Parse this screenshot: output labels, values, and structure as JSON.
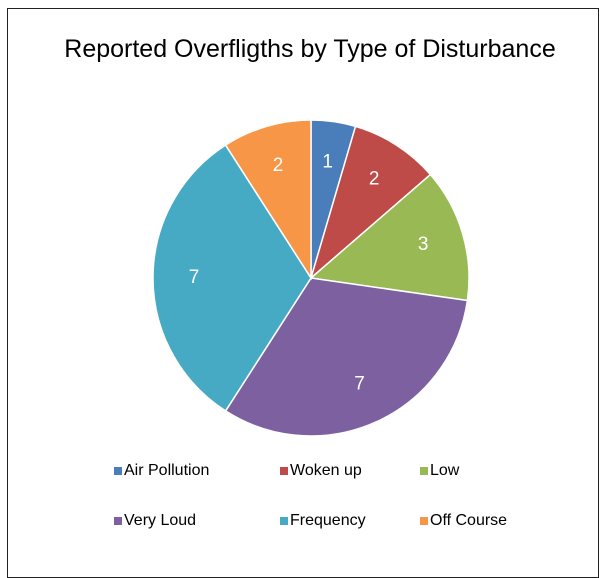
{
  "chart_data": {
    "type": "pie",
    "title": "Reported Overfligths by Type of Disturbance",
    "categories": [
      "Air Pollution",
      "Woken up",
      "Low",
      "Very Loud",
      "Frequency",
      "Off Course"
    ],
    "values": [
      1,
      2,
      3,
      7,
      7,
      2
    ],
    "colors": [
      "#4a7ebb",
      "#be4b48",
      "#98b954",
      "#7d60a0",
      "#46aac5",
      "#f79646"
    ],
    "legend": "bottom"
  }
}
